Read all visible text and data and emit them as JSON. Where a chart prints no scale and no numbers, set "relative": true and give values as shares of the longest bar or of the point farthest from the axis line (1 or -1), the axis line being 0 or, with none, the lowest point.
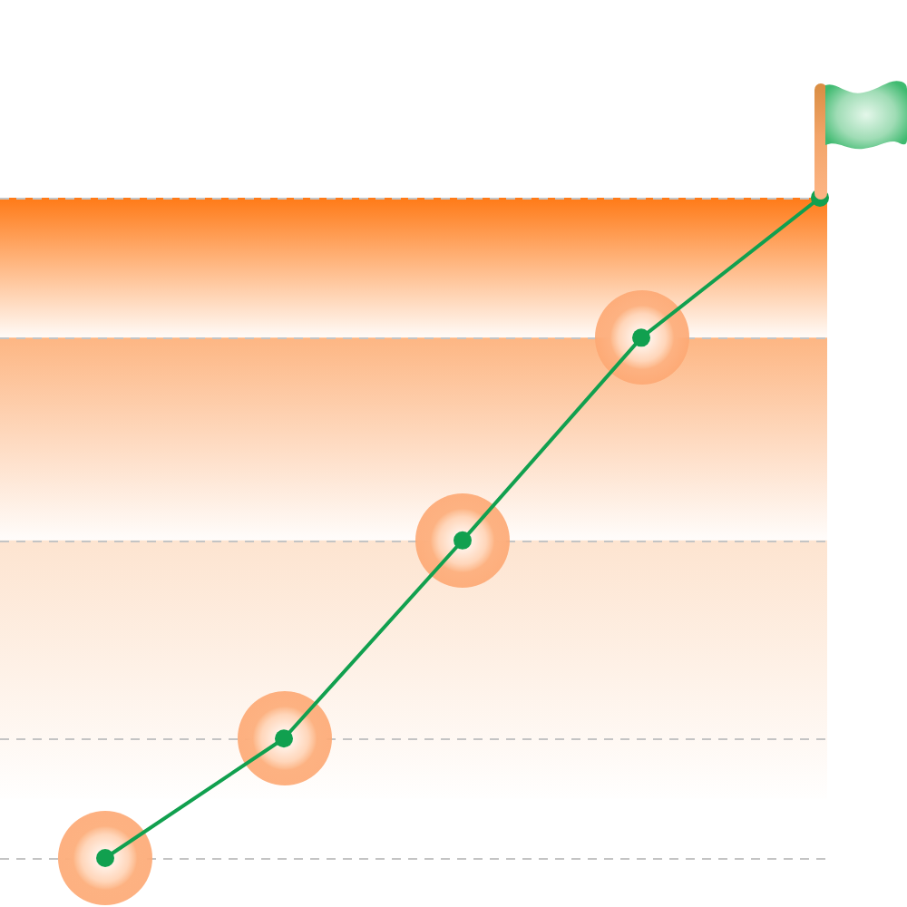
{
  "chart_data": {
    "type": "line",
    "relative": true,
    "tick_labels": false,
    "categories": [
      null,
      null,
      null,
      null,
      null
    ],
    "values": [
      0,
      0.181,
      0.481,
      0.788,
      1
    ],
    "color": "#11a04f",
    "marker": "circle",
    "line_style": "solid",
    "ref_lines": [
      {
        "axis": "y",
        "value": 1,
        "color": "#c4c4c4",
        "line_style": "dashed"
      },
      {
        "axis": "y",
        "value": 0.788,
        "color": "#c4c4c4",
        "line_style": "dashed"
      },
      {
        "axis": "y",
        "value": 0.481,
        "color": "#c4c4c4",
        "line_style": "dashed"
      },
      {
        "axis": "y",
        "value": 0.181,
        "color": "#c4c4c4",
        "line_style": "dashed"
      },
      {
        "axis": "y",
        "value": 0,
        "color": "#c4c4c4",
        "line_style": "dashed"
      }
    ],
    "bands": [
      {
        "axis": "y",
        "from": 0.788,
        "to": 1,
        "color": "#ff7a17"
      },
      {
        "axis": "y",
        "from": 0.481,
        "to": 0.788,
        "color": "#fdb683"
      },
      {
        "axis": "y",
        "from": 0.09,
        "to": 0.481,
        "color": "#fde4d0"
      }
    ]
  }
}
